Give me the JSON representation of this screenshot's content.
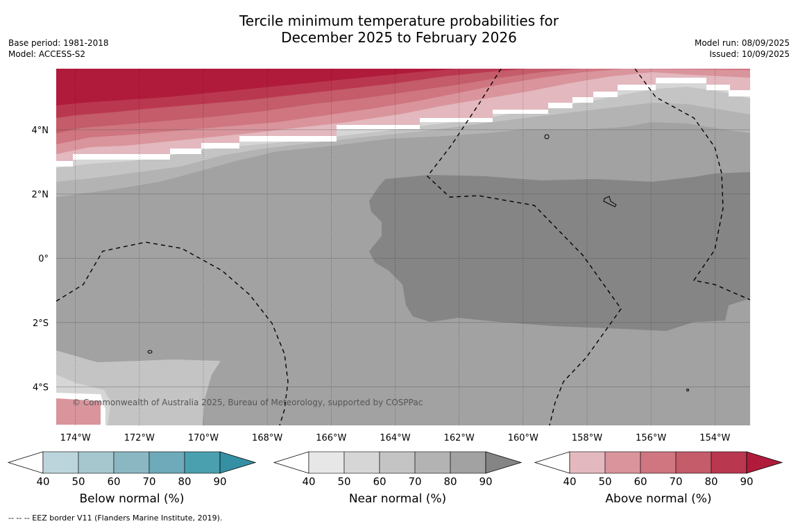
{
  "title": {
    "line1": "Tercile minimum temperature probabilities for",
    "line2": "December 2025 to February 2026"
  },
  "info_left": {
    "base_period": "Base period: 1981-2018",
    "model": "Model: ACCESS-S2"
  },
  "info_right": {
    "model_run": "Model run: 08/09/2025",
    "issued": "Issued: 10/09/2025"
  },
  "map": {
    "lon_range": [
      -174.6,
      -152.9
    ],
    "lat_range": [
      -5.2,
      5.9
    ],
    "lon_ticks": [
      {
        "value": -174,
        "label": "174°W"
      },
      {
        "value": -172,
        "label": "172°W"
      },
      {
        "value": -170,
        "label": "170°W"
      },
      {
        "value": -168,
        "label": "168°W"
      },
      {
        "value": -166,
        "label": "166°W"
      },
      {
        "value": -164,
        "label": "164°W"
      },
      {
        "value": -162,
        "label": "162°W"
      },
      {
        "value": -160,
        "label": "160°W"
      },
      {
        "value": -158,
        "label": "158°W"
      },
      {
        "value": -156,
        "label": "156°W"
      },
      {
        "value": -154,
        "label": "154°W"
      }
    ],
    "lat_ticks": [
      {
        "value": 4,
        "label": "4°N"
      },
      {
        "value": 2,
        "label": "2°N"
      },
      {
        "value": 0,
        "label": "0°"
      },
      {
        "value": -2,
        "label": "2°S"
      },
      {
        "value": -4,
        "label": "4°S"
      }
    ],
    "gridlines": true,
    "copyright": "© Commonwealth of Australia 2025, Bureau of Meteorology, supported by COSPPac"
  },
  "colorbars": [
    {
      "name": "below",
      "label": "Below normal (%)",
      "ticks": [
        "40",
        "50",
        "60",
        "70",
        "80",
        "90"
      ],
      "colors": [
        "#bcd4db",
        "#a6c7cd",
        "#8ab7c2",
        "#6eaab9",
        "#4aa0ae",
        "#3590a3"
      ]
    },
    {
      "name": "near",
      "label": "Near normal (%)",
      "ticks": [
        "40",
        "50",
        "60",
        "70",
        "80",
        "90"
      ],
      "colors": [
        "#e7e7e7",
        "#d6d6d6",
        "#c4c4c4",
        "#b3b3b3",
        "#a2a2a2",
        "#858585"
      ]
    },
    {
      "name": "above",
      "label": "Above normal (%)",
      "ticks": [
        "40",
        "50",
        "60",
        "70",
        "80",
        "90"
      ],
      "colors": [
        "#e3b8be",
        "#d9949c",
        "#cf7680",
        "#c45c6a",
        "#ba3750",
        "#b01b3b"
      ]
    }
  ],
  "footnote": "--  --  -- EEZ border V11 (Flanders Marine Institute, 2019)."
}
